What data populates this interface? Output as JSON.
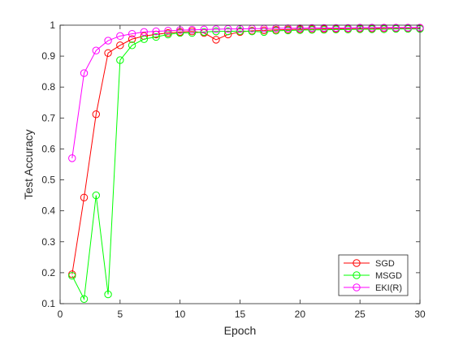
{
  "chart_data": {
    "type": "line",
    "title": "",
    "xlabel": "Epoch",
    "ylabel": "Test Accuracy",
    "xlim": [
      0,
      30
    ],
    "ylim": [
      0.1,
      1
    ],
    "xticks": [
      0,
      5,
      10,
      15,
      20,
      25,
      30
    ],
    "yticks": [
      0.1,
      0.2,
      0.3,
      0.4,
      0.5,
      0.6,
      0.7,
      0.8,
      0.9,
      1
    ],
    "xtick_labels": [
      "0",
      "5",
      "10",
      "15",
      "20",
      "25",
      "30"
    ],
    "ytick_labels": [
      "0.1",
      "0.2",
      "0.3",
      "0.4",
      "0.5",
      "0.6",
      "0.7",
      "0.8",
      "0.9",
      "1"
    ],
    "grid": false,
    "legend_position": "bottom-right",
    "marker": "circle",
    "x": [
      1,
      2,
      3,
      4,
      5,
      6,
      7,
      8,
      9,
      10,
      11,
      12,
      13,
      14,
      15,
      16,
      17,
      18,
      19,
      20,
      21,
      22,
      23,
      24,
      25,
      26,
      27,
      28,
      29,
      30
    ],
    "series": [
      {
        "name": "SGD",
        "color": "#ff0000",
        "values": [
          0.195,
          0.443,
          0.712,
          0.91,
          0.935,
          0.955,
          0.965,
          0.97,
          0.975,
          0.978,
          0.98,
          0.975,
          0.953,
          0.97,
          0.978,
          0.982,
          0.983,
          0.985,
          0.986,
          0.987,
          0.987,
          0.988,
          0.988,
          0.989,
          0.989,
          0.989,
          0.99,
          0.99,
          0.99,
          0.99
        ]
      },
      {
        "name": "MSGD",
        "color": "#00ff00",
        "values": [
          0.19,
          0.115,
          0.45,
          0.13,
          0.887,
          0.935,
          0.955,
          0.962,
          0.97,
          0.975,
          0.975,
          0.978,
          0.98,
          0.98,
          0.981,
          0.98,
          0.978,
          0.982,
          0.983,
          0.984,
          0.985,
          0.985,
          0.986,
          0.986,
          0.987,
          0.987,
          0.987,
          0.988,
          0.988,
          0.988
        ]
      },
      {
        "name": "EKI(R)",
        "color": "#ff00ff",
        "values": [
          0.57,
          0.845,
          0.918,
          0.95,
          0.965,
          0.972,
          0.978,
          0.98,
          0.982,
          0.984,
          0.985,
          0.986,
          0.987,
          0.988,
          0.988,
          0.989,
          0.989,
          0.99,
          0.99,
          0.99,
          0.991,
          0.991,
          0.991,
          0.991,
          0.992,
          0.992,
          0.992,
          0.992,
          0.992,
          0.992
        ]
      }
    ]
  }
}
